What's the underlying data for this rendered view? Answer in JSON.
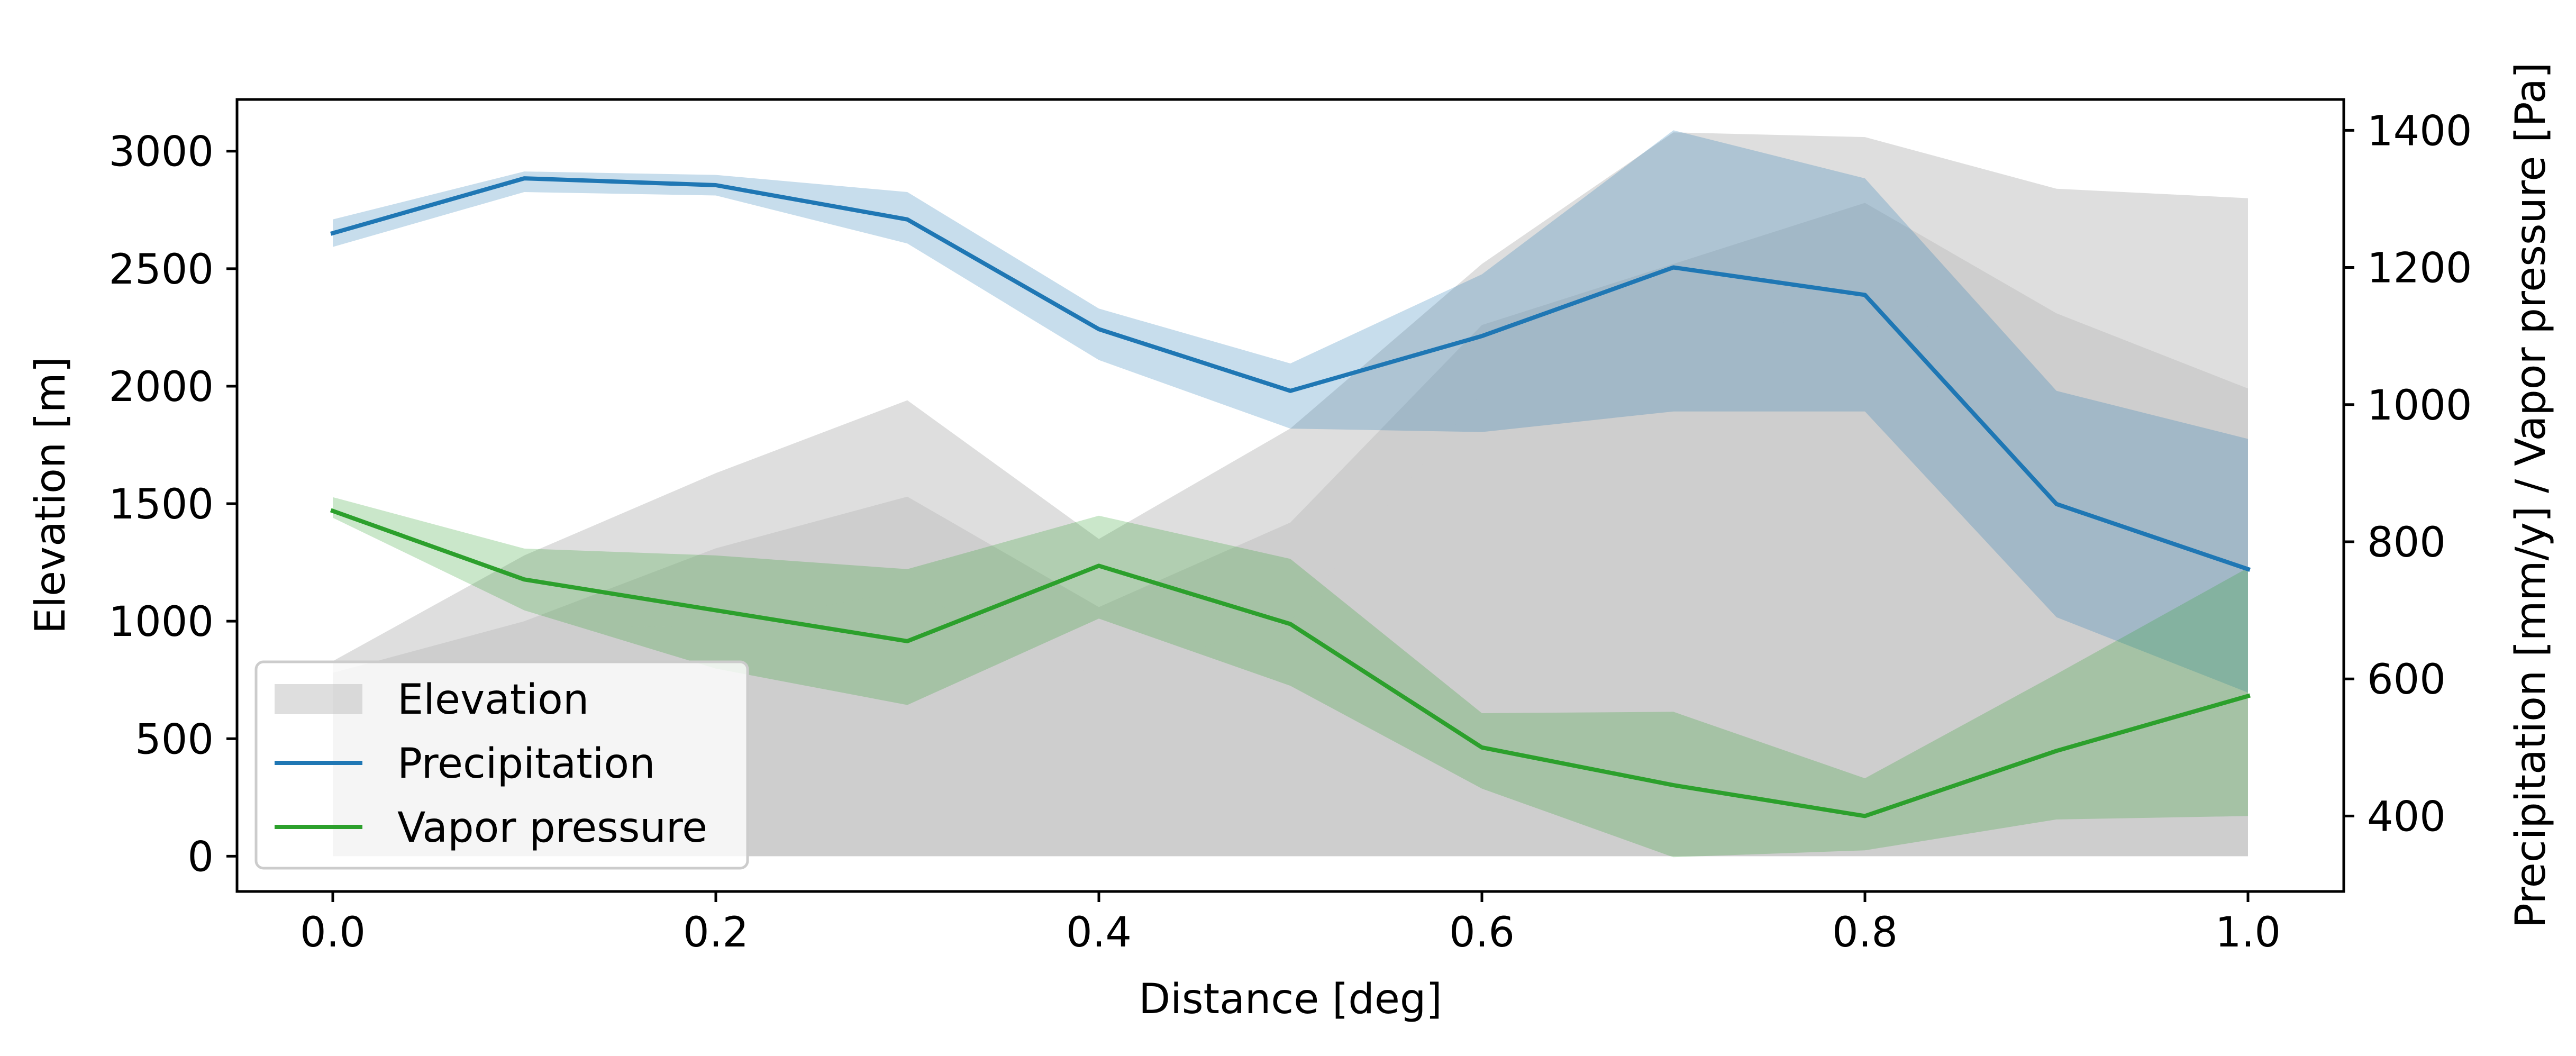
{
  "chart_data": {
    "type": "area",
    "x": [
      0.0,
      0.1,
      0.2,
      0.3,
      0.4,
      0.5,
      0.6,
      0.7,
      0.8,
      0.9,
      1.0
    ],
    "xlabel": "Distance [deg]",
    "ylabel": "Elevation [m]",
    "ylabel_right": "Precipitation [mm/y] / Vapor pressure [Pa]",
    "xlim": [
      -0.05,
      1.05
    ],
    "ylim": [
      -150,
      3220
    ],
    "ylim_right": [
      290,
      1445
    ],
    "xticks": [
      "0.0",
      "0.2",
      "0.4",
      "0.6",
      "0.8",
      "1.0"
    ],
    "xtick_values": [
      0.0,
      0.2,
      0.4,
      0.6,
      0.8,
      1.0
    ],
    "yticks": [
      "0",
      "500",
      "1000",
      "1500",
      "2000",
      "2500",
      "3000"
    ],
    "ytick_values": [
      0,
      500,
      1000,
      1500,
      2000,
      2500,
      3000
    ],
    "yticks_right": [
      "400",
      "600",
      "800",
      "1000",
      "1200",
      "1400"
    ],
    "ytick_values_right": [
      400,
      600,
      800,
      1000,
      1200,
      1400
    ],
    "grid": false,
    "legend_position": "lower-left",
    "elevation": {
      "name": "Elevation",
      "axis": "left",
      "color": "#bdbdbd",
      "max": [
        830,
        1280,
        1630,
        1940,
        1350,
        1820,
        2520,
        3080,
        3060,
        2840,
        2800
      ],
      "upper_quartile": [
        780,
        1000,
        1310,
        1530,
        1060,
        1420,
        2260,
        2520,
        2780,
        2310,
        1990
      ],
      "lower_quartile": [
        0,
        970,
        980,
        1130,
        760,
        1000,
        1970,
        2000,
        2470,
        1810,
        1220
      ],
      "min": [
        0,
        0,
        0,
        0,
        0,
        0,
        0,
        0,
        0,
        0,
        0
      ]
    },
    "series": [
      {
        "name": "Precipitation",
        "axis": "right",
        "color": "#1f77b4",
        "values": [
          1250,
          1330,
          1320,
          1270,
          1110,
          1020,
          1100,
          1200,
          1160,
          855,
          760
        ],
        "band_upper": [
          1270,
          1340,
          1335,
          1310,
          1140,
          1060,
          1190,
          1400,
          1330,
          1020,
          950
        ],
        "band_lower": [
          1230,
          1310,
          1305,
          1235,
          1065,
          965,
          960,
          990,
          990,
          690,
          580
        ]
      },
      {
        "name": "Vapor pressure",
        "axis": "right",
        "color": "#2ca02c",
        "values": [
          845,
          745,
          700,
          655,
          765,
          680,
          500,
          445,
          400,
          495,
          575
        ],
        "band_upper": [
          865,
          790,
          780,
          760,
          838,
          775,
          550,
          552,
          455,
          607,
          762
        ],
        "band_lower": [
          835,
          700,
          615,
          562,
          688,
          590,
          440,
          340,
          350,
          395,
          400
        ]
      }
    ]
  }
}
